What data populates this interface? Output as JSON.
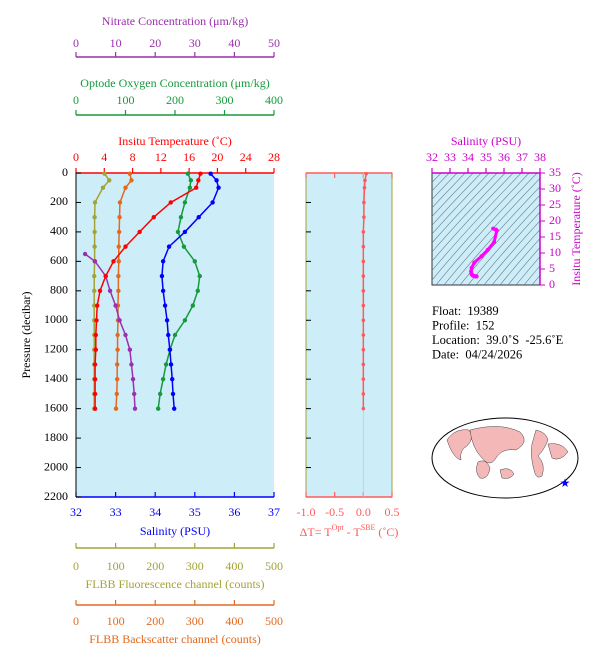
{
  "chart_data": {
    "type": "line",
    "pressure_axis": {
      "label": "Pressure (decibar)",
      "lim": [
        0,
        2200
      ],
      "ticks": [
        0,
        200,
        400,
        600,
        800,
        1000,
        1200,
        1400,
        1600,
        1800,
        2000,
        2200
      ]
    },
    "axes": {
      "nitrate": {
        "label": "Nitrate Concentration (μm/kg)",
        "lim": [
          0,
          50
        ],
        "ticks": [
          0,
          10,
          20,
          30,
          40,
          50
        ],
        "color": "#9b2fae"
      },
      "oxygen": {
        "label": "Optode Oxygen Concentration (μm/kg)",
        "lim": [
          0,
          400
        ],
        "ticks": [
          0,
          100,
          200,
          300,
          400
        ],
        "color": "#159a3c"
      },
      "temperature": {
        "label": "Insitu Temperature (˚C)",
        "lim": [
          0,
          28
        ],
        "ticks": [
          0,
          4,
          8,
          12,
          16,
          20,
          24,
          28
        ],
        "color": "#ff0000"
      },
      "salinity": {
        "label": "Salinity (PSU)",
        "lim": [
          32,
          37
        ],
        "ticks": [
          32,
          33,
          34,
          35,
          36,
          37
        ],
        "color": "#0000ff"
      },
      "fluorescence": {
        "label": "FLBB Fluorescence channel (counts)",
        "lim": [
          0,
          500
        ],
        "ticks": [
          0,
          100,
          200,
          300,
          400,
          500
        ],
        "color": "#a3a336"
      },
      "backscatter": {
        "label": "FLBB Backscatter channel (counts)",
        "lim": [
          0,
          500
        ],
        "ticks": [
          0,
          100,
          200,
          300,
          400,
          500
        ],
        "color": "#e2691e"
      }
    },
    "pressure": [
      5,
      50,
      100,
      200,
      300,
      400,
      500,
      600,
      700,
      800,
      900,
      1000,
      1100,
      1200,
      1300,
      1400,
      1500,
      1600
    ],
    "series": [
      {
        "axis": "fluorescence",
        "values": [
          72,
          84,
          68,
          48,
          47,
          47,
          47,
          47,
          46,
          46,
          46,
          46,
          46,
          46,
          46,
          46,
          46,
          46
        ]
      },
      {
        "axis": "backscatter",
        "values": [
          136,
          140,
          125,
          111,
          110,
          109,
          108,
          108,
          107,
          107,
          106,
          106,
          105,
          105,
          104,
          104,
          103,
          101
        ]
      },
      {
        "axis": "nitrate",
        "pressure": [
          550,
          600,
          700,
          800,
          900,
          1000,
          1100,
          1200,
          1300,
          1400,
          1500,
          1600
        ],
        "values": [
          2.3,
          4.8,
          7.5,
          8.6,
          10,
          11,
          12.5,
          13.6,
          14,
          14.4,
          14.7,
          14.9
        ]
      },
      {
        "axis": "oxygen",
        "values": [
          226,
          232,
          230,
          220,
          212,
          206,
          218,
          240,
          250,
          246,
          236,
          220,
          200,
          190,
          182,
          176,
          170,
          166
        ]
      },
      {
        "axis": "temperature",
        "values": [
          17.6,
          17.3,
          17.0,
          13.4,
          11.0,
          9.0,
          7.0,
          5.3,
          4.2,
          3.4,
          3.0,
          2.9,
          2.8,
          2.8,
          2.7,
          2.7,
          2.7,
          2.7
        ]
      },
      {
        "axis": "salinity",
        "values": [
          35.4,
          35.55,
          35.6,
          35.45,
          35.1,
          34.75,
          34.35,
          34.2,
          34.17,
          34.2,
          34.25,
          34.3,
          34.33,
          34.37,
          34.4,
          34.43,
          34.45,
          34.48
        ]
      }
    ],
    "delta": {
      "label_parts": [
        "ΔT= T",
        "Opt",
        " - T",
        "SBE",
        " (˚C)"
      ],
      "lim": [
        -1,
        0.5
      ],
      "ticks": [
        {
          "value": -1,
          "label": "-1.0"
        },
        -0.5,
        {
          "value": 0,
          "label": "0.0"
        },
        0.5
      ],
      "color": "#ff5a5a",
      "values": [
        0.05,
        0.03,
        0.02,
        0.01,
        0.01,
        0.0,
        0.0,
        0.0,
        0.0,
        0.0,
        0.0,
        0.0,
        0.0,
        0.0,
        0.0,
        0.0,
        0.0,
        0.0
      ]
    },
    "ts": {
      "xlabel": "Salinity (PSU)",
      "xlim": [
        32,
        38
      ],
      "xticks": [
        32,
        33,
        34,
        35,
        36,
        37,
        38
      ],
      "ylabel": "Insitu Temperature (˚C)",
      "ylim": [
        0,
        35
      ],
      "yticks": [
        0,
        5,
        10,
        15,
        20,
        25,
        30,
        35
      ],
      "color": "#ff00ff",
      "axis_color": "#cc00cc"
    },
    "info": [
      "Float:  19389",
      "Profile:  152",
      "Location:  39.0˚S  -25.6˚E",
      "Date:  04/24/2026"
    ]
  }
}
